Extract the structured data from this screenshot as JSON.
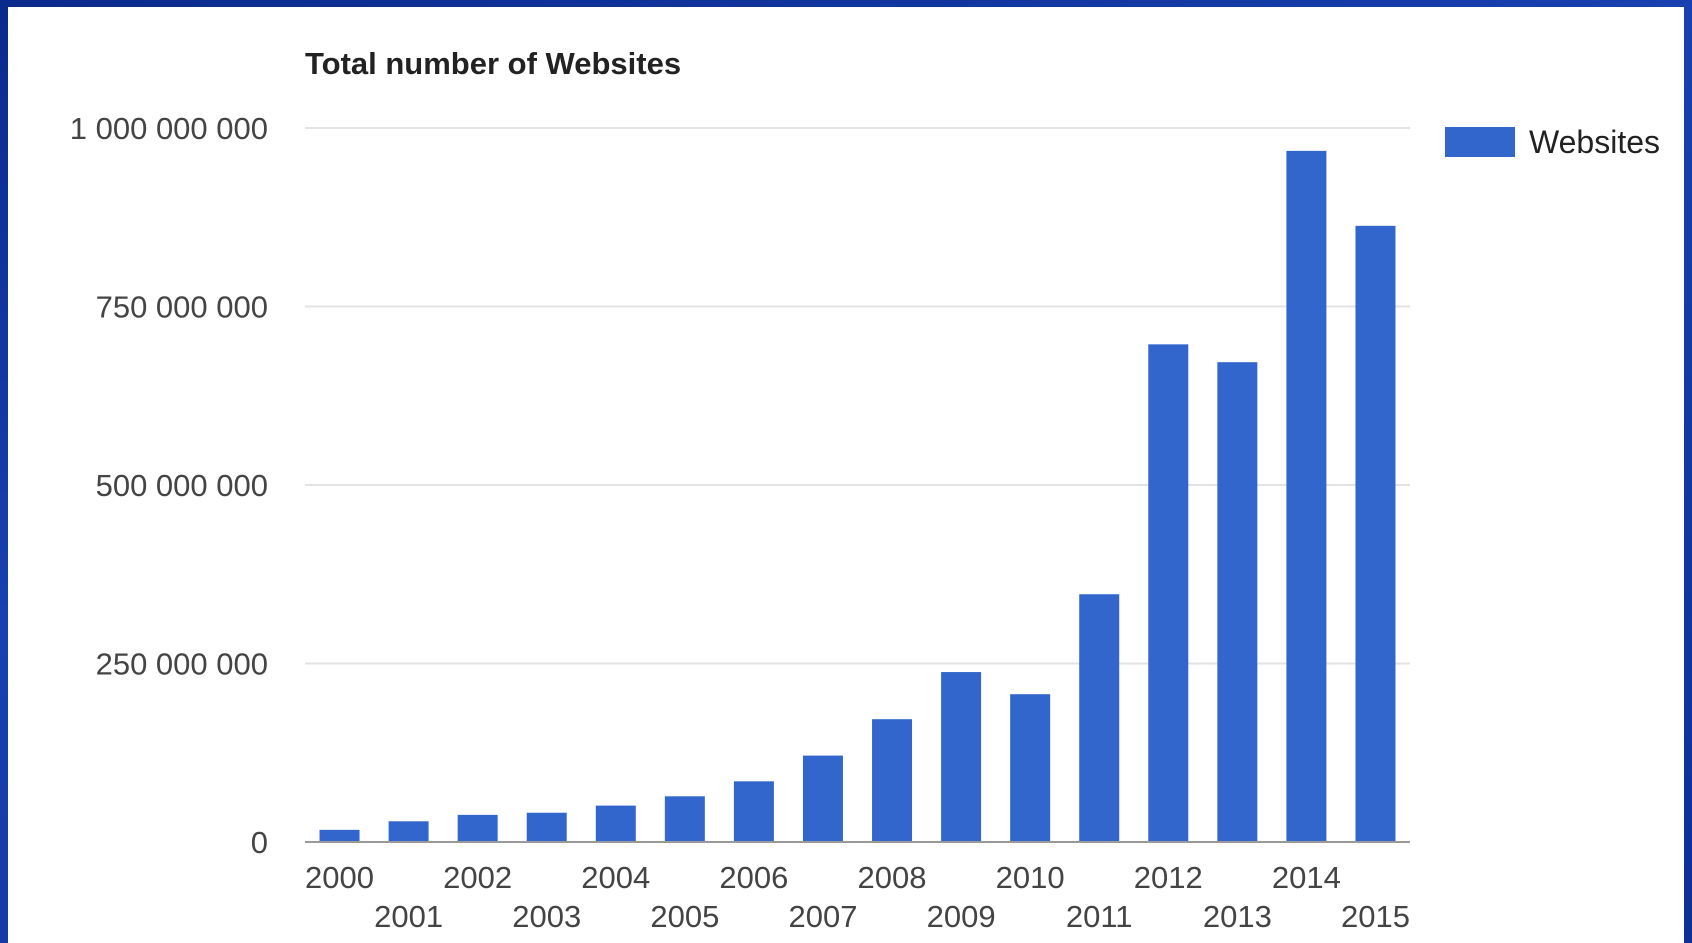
{
  "colors": {
    "bar": "#3366cc",
    "gridline": "#e3e3e3",
    "baseline": "#999999",
    "background": "#ffffff",
    "slide_frame": "#1840b0"
  },
  "chart_data": {
    "type": "bar",
    "title": "Total number of Websites",
    "xlabel": "",
    "ylabel": "",
    "categories": [
      "2000",
      "2001",
      "2002",
      "2003",
      "2004",
      "2005",
      "2006",
      "2007",
      "2008",
      "2009",
      "2010",
      "2011",
      "2012",
      "2013",
      "2014",
      "2015"
    ],
    "series": [
      {
        "name": "Websites",
        "values": [
          17000000,
          29000000,
          38000000,
          41000000,
          51000000,
          64000000,
          85000000,
          121000000,
          172000000,
          238000000,
          207000000,
          347000000,
          697000000,
          672000000,
          968000000,
          863000000
        ]
      }
    ],
    "ylim": [
      0,
      1000000000
    ],
    "yticks": [
      0,
      250000000,
      500000000,
      750000000,
      1000000000
    ],
    "ytick_labels": [
      "0",
      "250 000 000",
      "500 000 000",
      "750 000 000",
      "1 000 000 000"
    ],
    "grid": true,
    "legend_position": "right"
  }
}
